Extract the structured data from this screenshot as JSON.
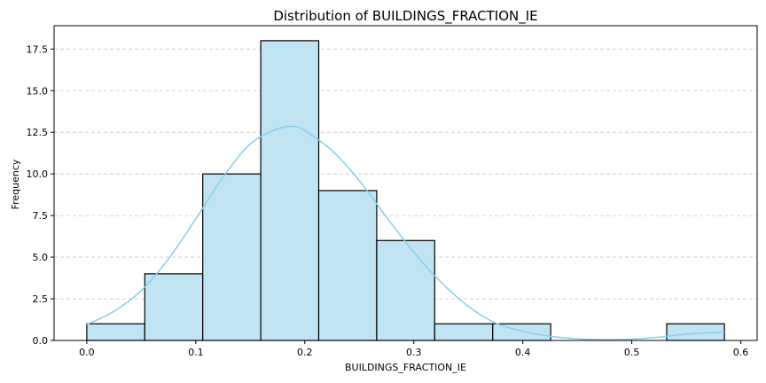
{
  "chart_data": {
    "type": "bar",
    "title": "Distribution of BUILDINGS_FRACTION_IE",
    "xlabel": "BUILDINGS_FRACTION_IE",
    "ylabel": "Frequency",
    "bin_edges": [
      0.0,
      0.0532,
      0.1064,
      0.1596,
      0.2128,
      0.266,
      0.3192,
      0.3724,
      0.4256,
      0.4788,
      0.532,
      0.585
    ],
    "values": [
      1,
      4,
      10,
      18,
      9,
      6,
      1,
      1,
      0,
      0,
      1
    ],
    "xlim": [
      -0.03,
      0.615
    ],
    "ylim": [
      0,
      18.9
    ],
    "xticks": [
      0.0,
      0.1,
      0.2,
      0.3,
      0.4,
      0.5,
      0.6
    ],
    "xtick_labels": [
      "0.0",
      "0.1",
      "0.2",
      "0.3",
      "0.4",
      "0.5",
      "0.6"
    ],
    "yticks": [
      0,
      2.5,
      5,
      7.5,
      10,
      12.5,
      15,
      17.5
    ],
    "ytick_labels": [
      "0.0",
      "2.5",
      "5.0",
      "7.5",
      "10.0",
      "12.5",
      "15.0",
      "17.5"
    ],
    "kde": {
      "x": [
        0.0,
        0.025,
        0.05,
        0.075,
        0.1,
        0.125,
        0.15,
        0.175,
        0.19,
        0.2,
        0.225,
        0.25,
        0.275,
        0.3,
        0.325,
        0.35,
        0.375,
        0.4,
        0.425,
        0.45,
        0.475,
        0.5,
        0.525,
        0.55,
        0.585
      ],
      "y": [
        0.95,
        1.75,
        3.0,
        4.9,
        7.3,
        9.8,
        11.8,
        12.7,
        12.85,
        12.6,
        11.4,
        9.6,
        7.4,
        5.3,
        3.5,
        2.05,
        1.05,
        0.55,
        0.25,
        0.1,
        0.05,
        0.08,
        0.2,
        0.38,
        0.5
      ]
    },
    "grid": "y-dashed",
    "colors": {
      "bar_fill": "#c1e4f3",
      "bar_edge": "#000000",
      "kde_line": "#87ceeb",
      "grid": "#c8c8c8"
    }
  }
}
